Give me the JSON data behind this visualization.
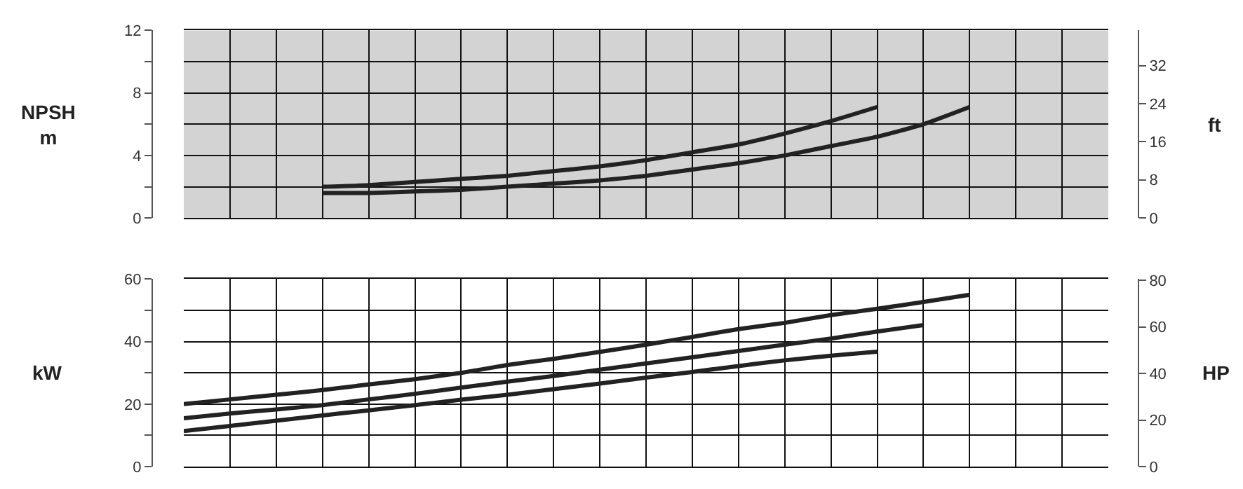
{
  "chart_data": [
    {
      "type": "line",
      "ylabel": "NPSH\nm",
      "y2label": "ft",
      "categories": [
        null,
        null,
        null,
        null,
        null,
        null,
        null,
        null,
        null,
        null,
        null,
        null,
        null,
        null,
        null,
        null,
        null,
        null,
        null,
        null,
        null
      ],
      "series": [
        {
          "color": "#222222",
          "values": [
            null,
            null,
            null,
            2.0,
            2.1,
            2.3,
            2.5,
            2.7,
            3.0,
            3.3,
            3.7,
            4.2,
            4.7,
            5.4,
            6.2,
            7.1,
            null,
            null,
            null,
            null,
            null
          ]
        },
        {
          "color": "#222222",
          "values": [
            null,
            null,
            null,
            1.6,
            1.6,
            1.7,
            1.8,
            2.0,
            2.2,
            2.4,
            2.7,
            3.1,
            3.5,
            4.0,
            4.6,
            5.2,
            6.0,
            7.1,
            null,
            null,
            null
          ]
        }
      ],
      "ylim": [
        0,
        12
      ],
      "yticks": [
        0,
        {
          "value": 2,
          "label": null
        },
        4,
        {
          "value": 6,
          "label": null
        },
        8,
        {
          "value": 10,
          "label": null
        },
        12
      ],
      "y2lim": [
        0,
        39.4
      ],
      "y2ticks": [
        0,
        8,
        16,
        24,
        32
      ],
      "grid": true,
      "tick_labels": "y"
    },
    {
      "type": "line",
      "ylabel": "kW",
      "y2label": "HP",
      "categories": [
        null,
        null,
        null,
        null,
        null,
        null,
        null,
        null,
        null,
        null,
        null,
        null,
        null,
        null,
        null,
        null,
        null,
        null,
        null,
        null,
        null
      ],
      "series": [
        {
          "color": "#222222",
          "values": [
            20,
            21.5,
            23,
            24.5,
            26.3,
            28,
            30,
            32.5,
            34.5,
            36.7,
            39,
            41.5,
            44,
            46,
            48.5,
            50.5,
            52.7,
            55,
            null,
            null,
            null
          ]
        },
        {
          "color": "#222222",
          "values": [
            15.5,
            17,
            18.3,
            19.7,
            21.5,
            23.3,
            25.3,
            27.2,
            29,
            31,
            33,
            35,
            37,
            39,
            41,
            43.2,
            45.3,
            null,
            null,
            null,
            null
          ]
        },
        {
          "color": "#222222",
          "values": [
            11.4,
            13,
            14.7,
            16.4,
            18,
            19.7,
            21.4,
            23,
            24.8,
            26.6,
            28.5,
            30.3,
            32.2,
            34,
            35.5,
            36.8,
            null,
            null,
            null,
            null,
            null
          ]
        }
      ],
      "ylim": [
        0,
        60
      ],
      "yticks": [
        0,
        {
          "value": 10,
          "label": null
        },
        20,
        {
          "value": 30,
          "label": null
        },
        40,
        {
          "value": 50,
          "label": null
        },
        60
      ],
      "y2lim": [
        0,
        80.5
      ],
      "y2ticks": [
        0,
        20,
        40,
        60,
        80
      ],
      "grid": true,
      "tick_labels": "y"
    }
  ]
}
